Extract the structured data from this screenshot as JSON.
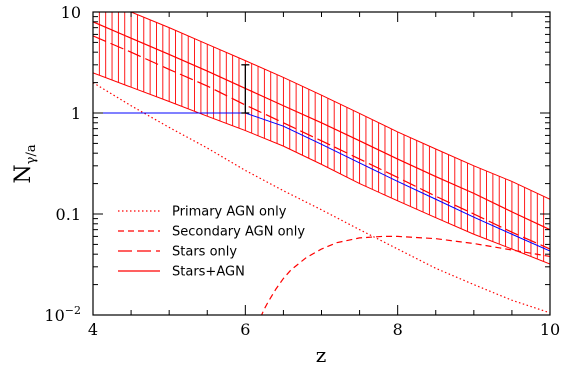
{
  "chart_data": {
    "type": "line",
    "xlabel": "z",
    "ylabel_main": "N",
    "ylabel_sub": "γ/a",
    "xlim": [
      4,
      10
    ],
    "ylim": [
      0.01,
      10
    ],
    "yscale": "log",
    "x_ticks": [
      "4",
      "6",
      "8",
      "10"
    ],
    "y_ticks": [
      {
        "label": "10",
        "value": 10
      },
      {
        "label": "1",
        "value": 1
      },
      {
        "label": "0.1",
        "value": 0.1
      },
      {
        "label": "10",
        "sup": "−2",
        "value": 0.01
      }
    ],
    "band": {
      "name": "Stars+AGN range",
      "color": "#ff0000",
      "x": [
        4.0,
        4.5,
        5.0,
        5.5,
        6.0,
        6.5,
        7.0,
        7.5,
        8.0,
        8.5,
        9.0,
        9.5,
        10.0
      ],
      "upper": [
        12.0,
        10.0,
        7.0,
        4.8,
        3.3,
        2.25,
        1.5,
        0.99,
        0.65,
        0.44,
        0.3,
        0.21,
        0.14
      ],
      "lower": [
        2.5,
        1.8,
        1.3,
        0.93,
        0.67,
        0.47,
        0.31,
        0.2,
        0.135,
        0.092,
        0.063,
        0.045,
        0.032
      ]
    },
    "series": [
      {
        "name": "Primary AGN only",
        "color": "#ff0000",
        "dash": "dotted",
        "x": [
          4.0,
          4.5,
          5.0,
          5.5,
          6.0,
          6.5,
          7.0,
          7.5,
          8.0,
          8.5,
          9.0,
          9.5,
          10.0
        ],
        "y": [
          2.0,
          1.18,
          0.72,
          0.45,
          0.27,
          0.17,
          0.11,
          0.07,
          0.045,
          0.029,
          0.02,
          0.014,
          0.0105
        ]
      },
      {
        "name": "Secondary AGN only",
        "color": "#ff0000",
        "dash": "short",
        "x": [
          6.2,
          6.25,
          6.3,
          6.4,
          6.5,
          6.6,
          6.8,
          7.0,
          7.2,
          7.5,
          7.8,
          8.0,
          8.5,
          9.0,
          9.5,
          10.0
        ],
        "y": [
          0.0095,
          0.0115,
          0.0135,
          0.018,
          0.023,
          0.028,
          0.037,
          0.045,
          0.052,
          0.058,
          0.06,
          0.06,
          0.057,
          0.051,
          0.044,
          0.038
        ]
      },
      {
        "name": "Stars only",
        "color": "#ff0000",
        "dash": "long",
        "x": [
          4.0,
          4.5,
          5.0,
          5.5,
          6.0,
          6.5,
          7.0,
          7.5,
          8.0,
          8.5,
          9.0,
          9.5,
          10.0
        ],
        "y": [
          5.8,
          4.0,
          2.7,
          1.85,
          1.2,
          0.8,
          0.53,
          0.35,
          0.23,
          0.15,
          0.1,
          0.066,
          0.045
        ]
      },
      {
        "name": "Stars+AGN",
        "color": "#ff0000",
        "dash": "solid",
        "x": [
          4.0,
          4.5,
          5.0,
          5.5,
          6.0,
          6.5,
          7.0,
          7.5,
          8.0,
          8.5,
          9.0,
          9.5,
          10.0
        ],
        "y": [
          8.0,
          5.5,
          3.8,
          2.6,
          1.75,
          1.18,
          0.8,
          0.53,
          0.35,
          0.235,
          0.16,
          0.105,
          0.07
        ]
      },
      {
        "name": "",
        "color": "#0000ff",
        "dash": "solid",
        "x": [
          4.0,
          4.5,
          5.0,
          5.5,
          6.0,
          6.5,
          7.0,
          7.5,
          8.0,
          8.5,
          9.0,
          9.5,
          10.0
        ],
        "y": [
          1.0,
          1.0,
          1.0,
          1.0,
          1.0,
          0.74,
          0.49,
          0.32,
          0.21,
          0.14,
          0.093,
          0.063,
          0.043
        ]
      }
    ],
    "error_bar": {
      "x": 6.0,
      "y_low": 1.0,
      "y_high": 3.0,
      "color": "#000000"
    },
    "legend": {
      "position": "bottom-left",
      "entries": [
        {
          "label": "Primary AGN only",
          "dash": "dotted"
        },
        {
          "label": "Secondary AGN only",
          "dash": "short"
        },
        {
          "label": "Stars only",
          "dash": "long"
        },
        {
          "label": "Stars+AGN",
          "dash": "solid"
        }
      ]
    }
  }
}
